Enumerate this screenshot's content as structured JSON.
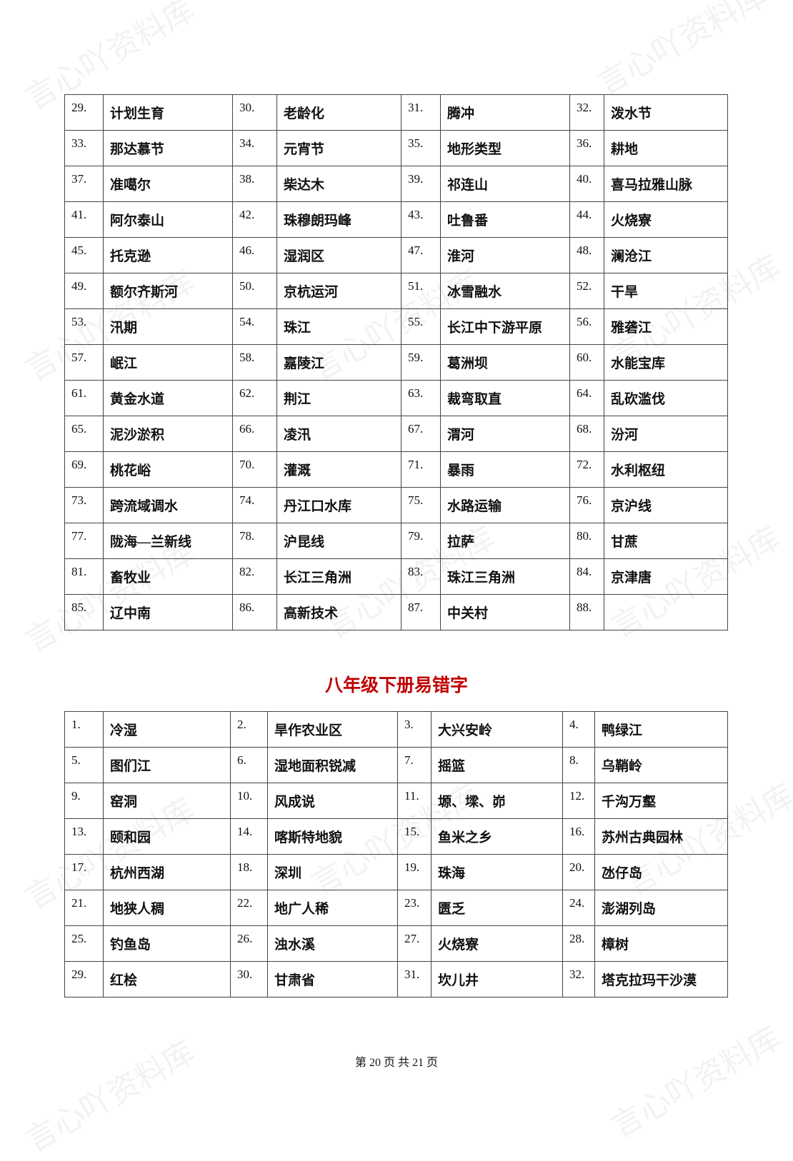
{
  "watermark": "言心吖资料库",
  "table1": {
    "rows": [
      [
        "29.",
        "计划生育",
        "30.",
        "老龄化",
        "31.",
        "腾冲",
        "32.",
        "泼水节"
      ],
      [
        "33.",
        "那达慕节",
        "34.",
        "元宵节",
        "35.",
        "地形类型",
        "36.",
        "耕地"
      ],
      [
        "37.",
        "准噶尔",
        "38.",
        "柴达木",
        "39.",
        "祁连山",
        "40.",
        "喜马拉雅山脉"
      ],
      [
        "41.",
        "阿尔泰山",
        "42.",
        "珠穆朗玛峰",
        "43.",
        "吐鲁番",
        "44.",
        "火烧寮"
      ],
      [
        "45.",
        "托克逊",
        "46.",
        "湿润区",
        "47.",
        "淮河",
        "48.",
        "澜沧江"
      ],
      [
        "49.",
        "额尔齐斯河",
        "50.",
        "京杭运河",
        "51.",
        "冰雪融水",
        "52.",
        "干旱"
      ],
      [
        "53.",
        "汛期",
        "54.",
        "珠江",
        "55.",
        "长江中下游平原",
        "56.",
        "雅砻江"
      ],
      [
        "57.",
        "岷江",
        "58.",
        "嘉陵江",
        "59.",
        "葛洲坝",
        "60.",
        "水能宝库"
      ],
      [
        "61.",
        "黄金水道",
        "62.",
        "荆江",
        "63.",
        "裁弯取直",
        "64.",
        "乱砍滥伐"
      ],
      [
        "65.",
        "泥沙淤积",
        "66.",
        "凌汛",
        "67.",
        "渭河",
        "68.",
        "汾河"
      ],
      [
        "69.",
        "桃花峪",
        "70.",
        "灌溉",
        "71.",
        "暴雨",
        "72.",
        "水利枢纽"
      ],
      [
        "73.",
        "跨流域调水",
        "74.",
        "丹江口水库",
        "75.",
        "水路运输",
        "76.",
        "京沪线"
      ],
      [
        "77.",
        "陇海—兰新线",
        "78.",
        "沪昆线",
        "79.",
        "拉萨",
        "80.",
        "甘蔗"
      ],
      [
        "81.",
        "畜牧业",
        "82.",
        "长江三角洲",
        "83.",
        "珠江三角洲",
        "84.",
        "京津唐"
      ],
      [
        "85.",
        "辽中南",
        "86.",
        "高新技术",
        "87.",
        "中关村",
        "88."
      ]
    ]
  },
  "heading": "八年级下册易错字",
  "table2": {
    "rows": [
      [
        "1.",
        "冷湿",
        "2.",
        "旱作农业区",
        "3.",
        "大兴安岭",
        "4.",
        "鸭绿江"
      ],
      [
        "5.",
        "图们江",
        "6.",
        "湿地面积锐减",
        "7.",
        "摇篮",
        "8.",
        "乌鞘岭"
      ],
      [
        "9.",
        "窑洞",
        "10.",
        "风成说",
        "11.",
        "塬、墚、峁",
        "12.",
        "千沟万壑"
      ],
      [
        "13.",
        "颐和园",
        "14.",
        "喀斯特地貌",
        "15.",
        "鱼米之乡",
        "16.",
        "苏州古典园林"
      ],
      [
        "17.",
        "杭州西湖",
        "18.",
        "深圳",
        "19.",
        "珠海",
        "20.",
        "氹仔岛"
      ],
      [
        "21.",
        "地狭人稠",
        "22.",
        "地广人稀",
        "23.",
        "匮乏",
        "24.",
        "澎湖列岛"
      ],
      [
        "25.",
        "钓鱼岛",
        "26.",
        "浊水溪",
        "27.",
        "火烧寮",
        "28.",
        "樟树"
      ],
      [
        "29.",
        "红桧",
        "30.",
        "甘肃省",
        "31.",
        "坎儿井",
        "32.",
        "塔克拉玛干沙漠"
      ]
    ]
  },
  "footer": "第 20 页 共 21 页"
}
